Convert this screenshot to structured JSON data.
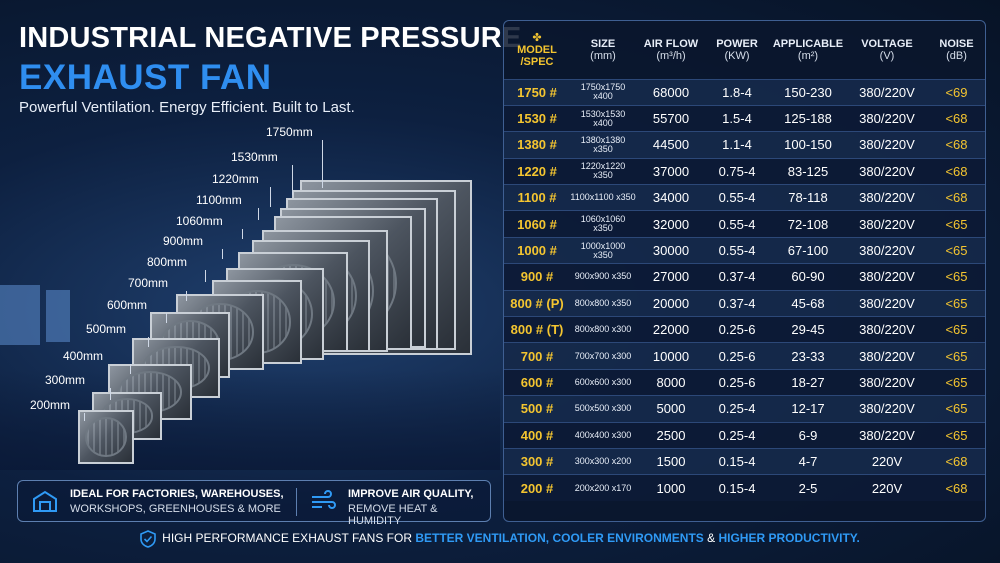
{
  "header": {
    "title_line1": "INDUSTRIAL NEGATIVE PRESSURE",
    "title_line2": "EXHAUST FAN",
    "subtitle": "Powerful Ventilation. Energy Efficient. Built to Last."
  },
  "size_labels": [
    "1750mm",
    "1530mm",
    "1220mm",
    "1100mm",
    "1060mm",
    "900mm",
    "800mm",
    "700mm",
    "600mm",
    "500mm",
    "400mm",
    "300mm",
    "200mm"
  ],
  "features": {
    "left_title": "IDEAL FOR FACTORIES, WAREHOUSES,",
    "left_sub": "WORKSHOPS, GREENHOUSES & MORE",
    "right_title": "IMPROVE AIR QUALITY,",
    "right_sub": "REMOVE HEAT & HUMIDITY"
  },
  "table": {
    "headers": [
      {
        "main": "MODEL",
        "unit": "/SPEC"
      },
      {
        "main": "SIZE",
        "unit": "(mm)"
      },
      {
        "main": "AIR FLOW",
        "unit": "(m³/h)"
      },
      {
        "main": "POWER",
        "unit": "(KW)"
      },
      {
        "main": "APPLICABLE",
        "unit": "(m²)"
      },
      {
        "main": "VOLTAGE",
        "unit": "(V)"
      },
      {
        "main": "NOISE",
        "unit": "(dB)"
      }
    ],
    "rows": [
      {
        "model": "1750 #",
        "size": "1750x1750 x400",
        "airflow": "68000",
        "power": "1.8-4",
        "area": "150-230",
        "voltage": "380/220V",
        "noise": "<69"
      },
      {
        "model": "1530 #",
        "size": "1530x1530 x400",
        "airflow": "55700",
        "power": "1.5-4",
        "area": "125-188",
        "voltage": "380/220V",
        "noise": "<68"
      },
      {
        "model": "1380 #",
        "size": "1380x1380 x350",
        "airflow": "44500",
        "power": "1.1-4",
        "area": "100-150",
        "voltage": "380/220V",
        "noise": "<68"
      },
      {
        "model": "1220 #",
        "size": "1220x1220 x350",
        "airflow": "37000",
        "power": "0.75-4",
        "area": "83-125",
        "voltage": "380/220V",
        "noise": "<68"
      },
      {
        "model": "1100 #",
        "size": "1100x1100 x350",
        "airflow": "34000",
        "power": "0.55-4",
        "area": "78-118",
        "voltage": "380/220V",
        "noise": "<68"
      },
      {
        "model": "1060 #",
        "size": "1060x1060 x350",
        "airflow": "32000",
        "power": "0.55-4",
        "area": "72-108",
        "voltage": "380/220V",
        "noise": "<65"
      },
      {
        "model": "1000 #",
        "size": "1000x1000 x350",
        "airflow": "30000",
        "power": "0.55-4",
        "area": "67-100",
        "voltage": "380/220V",
        "noise": "<65"
      },
      {
        "model": "900 #",
        "size": "900x900 x350",
        "airflow": "27000",
        "power": "0.37-4",
        "area": "60-90",
        "voltage": "380/220V",
        "noise": "<65"
      },
      {
        "model": "800 # (P)",
        "size": "800x800 x350",
        "airflow": "20000",
        "power": "0.37-4",
        "area": "45-68",
        "voltage": "380/220V",
        "noise": "<65"
      },
      {
        "model": "800 # (T)",
        "size": "800x800 x300",
        "airflow": "22000",
        "power": "0.25-6",
        "area": "29-45",
        "voltage": "380/220V",
        "noise": "<65"
      },
      {
        "model": "700 #",
        "size": "700x700 x300",
        "airflow": "10000",
        "power": "0.25-6",
        "area": "23-33",
        "voltage": "380/220V",
        "noise": "<65"
      },
      {
        "model": "600 #",
        "size": "600x600 x300",
        "airflow": "8000",
        "power": "0.25-6",
        "area": "18-27",
        "voltage": "380/220V",
        "noise": "<65"
      },
      {
        "model": "500 #",
        "size": "500x500 x300",
        "airflow": "5000",
        "power": "0.25-4",
        "area": "12-17",
        "voltage": "380/220V",
        "noise": "<65"
      },
      {
        "model": "400 #",
        "size": "400x400 x300",
        "airflow": "2500",
        "power": "0.25-4",
        "area": "6-9",
        "voltage": "380/220V",
        "noise": "<65"
      },
      {
        "model": "300 #",
        "size": "300x300 x200",
        "airflow": "1500",
        "power": "0.15-4",
        "area": "4-7",
        "voltage": "220V",
        "noise": "<68"
      },
      {
        "model": "200 #",
        "size": "200x200 x170",
        "airflow": "1000",
        "power": "0.15-4",
        "area": "2-5",
        "voltage": "220V",
        "noise": "<68"
      }
    ]
  },
  "bottom": {
    "part1": "HIGH PERFORMANCE EXHAUST FANS FOR ",
    "hl1": "BETTER VENTILATION, COOLER ENVIRONMENTS",
    "part2": " & ",
    "hl2": "HIGHER PRODUCTIVITY."
  },
  "colors": {
    "accent_blue": "#2f8ef0",
    "accent_yellow": "#f4c530",
    "background": "#0d2040"
  }
}
